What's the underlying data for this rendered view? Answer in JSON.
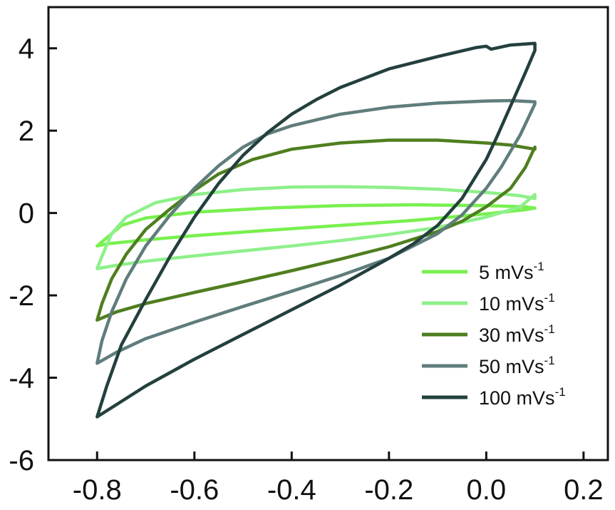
{
  "chart_data": {
    "type": "line",
    "title": "",
    "xlabel": "",
    "ylabel": "",
    "xlim": [
      -0.9,
      0.25
    ],
    "ylim": [
      -6,
      5
    ],
    "xticks": [
      -0.8,
      -0.6,
      -0.4,
      -0.2,
      0.0,
      0.2
    ],
    "yticks": [
      -6,
      -4,
      -2,
      0,
      2,
      4
    ],
    "xtick_labels": [
      "-0.8",
      "-0.6",
      "-0.4",
      "-0.2",
      "0.0",
      "0.2"
    ],
    "ytick_labels": [
      "-6",
      "-4",
      "-2",
      "0",
      "2",
      "4"
    ],
    "grid": false,
    "legend_position": "bottom-right",
    "series": [
      {
        "name": "5 mVs-1",
        "label_main": "5 mVs",
        "label_sup": "-1",
        "color": "#79f04f",
        "points": [
          [
            -0.8,
            -0.8
          ],
          [
            -0.78,
            -0.6
          ],
          [
            -0.75,
            -0.3
          ],
          [
            -0.7,
            -0.12
          ],
          [
            -0.6,
            0.02
          ],
          [
            -0.45,
            0.12
          ],
          [
            -0.3,
            0.18
          ],
          [
            -0.15,
            0.2
          ],
          [
            0.0,
            0.18
          ],
          [
            0.08,
            0.15
          ],
          [
            0.1,
            0.12
          ],
          [
            0.08,
            0.08
          ],
          [
            0.0,
            -0.02
          ],
          [
            -0.15,
            -0.18
          ],
          [
            -0.3,
            -0.3
          ],
          [
            -0.45,
            -0.42
          ],
          [
            -0.6,
            -0.55
          ],
          [
            -0.7,
            -0.65
          ],
          [
            -0.78,
            -0.75
          ],
          [
            -0.8,
            -0.8
          ]
        ]
      },
      {
        "name": "10 mVs-1",
        "label_main": "10 mVs",
        "label_sup": "-1",
        "color": "#8ef08a",
        "points": [
          [
            -0.8,
            -1.35
          ],
          [
            -0.79,
            -1.05
          ],
          [
            -0.77,
            -0.5
          ],
          [
            -0.74,
            -0.1
          ],
          [
            -0.68,
            0.25
          ],
          [
            -0.6,
            0.45
          ],
          [
            -0.5,
            0.57
          ],
          [
            -0.4,
            0.63
          ],
          [
            -0.3,
            0.64
          ],
          [
            -0.2,
            0.62
          ],
          [
            -0.1,
            0.58
          ],
          [
            0.0,
            0.5
          ],
          [
            0.07,
            0.42
          ],
          [
            0.1,
            0.35
          ],
          [
            0.1,
            0.45
          ],
          [
            0.07,
            0.15
          ],
          [
            0.0,
            -0.1
          ],
          [
            -0.1,
            -0.35
          ],
          [
            -0.2,
            -0.52
          ],
          [
            -0.3,
            -0.67
          ],
          [
            -0.4,
            -0.8
          ],
          [
            -0.5,
            -0.92
          ],
          [
            -0.6,
            -1.04
          ],
          [
            -0.7,
            -1.17
          ],
          [
            -0.76,
            -1.27
          ],
          [
            -0.8,
            -1.35
          ]
        ]
      },
      {
        "name": "30 mVs-1",
        "label_main": "30 mVs",
        "label_sup": "-1",
        "color": "#4f7e1f",
        "points": [
          [
            -0.8,
            -2.6
          ],
          [
            -0.79,
            -2.2
          ],
          [
            -0.77,
            -1.6
          ],
          [
            -0.74,
            -1.0
          ],
          [
            -0.7,
            -0.4
          ],
          [
            -0.65,
            0.1
          ],
          [
            -0.6,
            0.55
          ],
          [
            -0.55,
            0.95
          ],
          [
            -0.48,
            1.3
          ],
          [
            -0.4,
            1.55
          ],
          [
            -0.3,
            1.7
          ],
          [
            -0.2,
            1.77
          ],
          [
            -0.1,
            1.77
          ],
          [
            0.0,
            1.7
          ],
          [
            0.05,
            1.65
          ],
          [
            0.1,
            1.55
          ],
          [
            0.1,
            1.6
          ],
          [
            0.08,
            1.1
          ],
          [
            0.05,
            0.6
          ],
          [
            0.0,
            0.15
          ],
          [
            -0.05,
            -0.2
          ],
          [
            -0.1,
            -0.45
          ],
          [
            -0.2,
            -0.82
          ],
          [
            -0.3,
            -1.12
          ],
          [
            -0.4,
            -1.4
          ],
          [
            -0.5,
            -1.67
          ],
          [
            -0.6,
            -1.93
          ],
          [
            -0.7,
            -2.2
          ],
          [
            -0.76,
            -2.4
          ],
          [
            -0.8,
            -2.6
          ]
        ]
      },
      {
        "name": "50 mVs-1",
        "label_main": "50 mVs",
        "label_sup": "-1",
        "color": "#5f7d7c",
        "points": [
          [
            -0.8,
            -3.65
          ],
          [
            -0.79,
            -3.1
          ],
          [
            -0.77,
            -2.4
          ],
          [
            -0.74,
            -1.6
          ],
          [
            -0.7,
            -0.8
          ],
          [
            -0.65,
            -0.05
          ],
          [
            -0.6,
            0.6
          ],
          [
            -0.55,
            1.15
          ],
          [
            -0.5,
            1.6
          ],
          [
            -0.45,
            1.92
          ],
          [
            -0.4,
            2.12
          ],
          [
            -0.3,
            2.4
          ],
          [
            -0.2,
            2.57
          ],
          [
            -0.1,
            2.67
          ],
          [
            0.0,
            2.72
          ],
          [
            0.05,
            2.73
          ],
          [
            0.1,
            2.7
          ],
          [
            0.1,
            2.65
          ],
          [
            0.07,
            1.9
          ],
          [
            0.03,
            1.1
          ],
          [
            0.0,
            0.6
          ],
          [
            -0.05,
            -0.05
          ],
          [
            -0.1,
            -0.5
          ],
          [
            -0.2,
            -1.1
          ],
          [
            -0.3,
            -1.52
          ],
          [
            -0.4,
            -1.9
          ],
          [
            -0.5,
            -2.27
          ],
          [
            -0.6,
            -2.65
          ],
          [
            -0.7,
            -3.05
          ],
          [
            -0.76,
            -3.38
          ],
          [
            -0.8,
            -3.65
          ]
        ]
      },
      {
        "name": "100 mVs-1",
        "label_main": "100 mVs",
        "label_sup": "-1",
        "color": "#23403e",
        "points": [
          [
            -0.8,
            -4.95
          ],
          [
            -0.78,
            -4.2
          ],
          [
            -0.75,
            -3.2
          ],
          [
            -0.7,
            -2.1
          ],
          [
            -0.65,
            -1.05
          ],
          [
            -0.6,
            -0.1
          ],
          [
            -0.55,
            0.72
          ],
          [
            -0.5,
            1.4
          ],
          [
            -0.45,
            1.95
          ],
          [
            -0.4,
            2.4
          ],
          [
            -0.35,
            2.75
          ],
          [
            -0.3,
            3.05
          ],
          [
            -0.2,
            3.5
          ],
          [
            -0.1,
            3.8
          ],
          [
            -0.02,
            4.02
          ],
          [
            0.0,
            4.05
          ],
          [
            0.01,
            3.98
          ],
          [
            0.05,
            4.08
          ],
          [
            0.1,
            4.12
          ],
          [
            0.1,
            3.95
          ],
          [
            0.08,
            3.4
          ],
          [
            0.05,
            2.6
          ],
          [
            0.02,
            1.8
          ],
          [
            0.0,
            1.3
          ],
          [
            -0.05,
            0.35
          ],
          [
            -0.1,
            -0.3
          ],
          [
            -0.15,
            -0.75
          ],
          [
            -0.2,
            -1.1
          ],
          [
            -0.3,
            -1.75
          ],
          [
            -0.4,
            -2.35
          ],
          [
            -0.5,
            -2.95
          ],
          [
            -0.6,
            -3.55
          ],
          [
            -0.7,
            -4.2
          ],
          [
            -0.76,
            -4.65
          ],
          [
            -0.8,
            -4.95
          ]
        ]
      }
    ]
  }
}
